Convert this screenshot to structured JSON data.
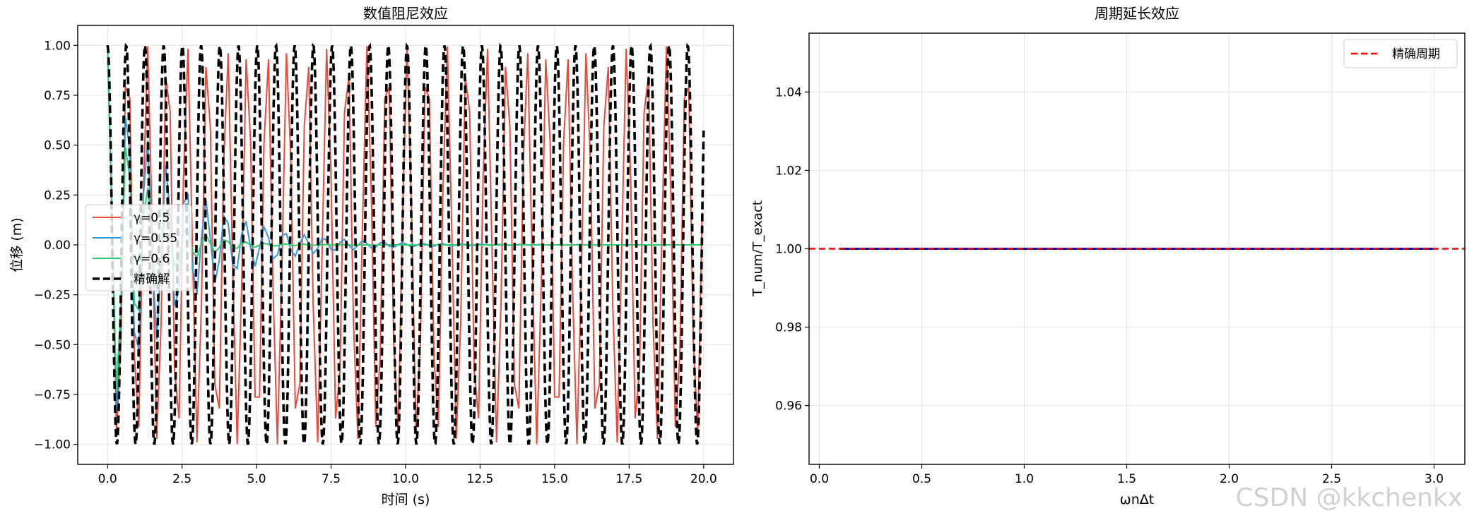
{
  "watermark": "CSDN @kkchenkx",
  "chart_data": [
    {
      "type": "line",
      "title": "数值阻尼效应",
      "xlabel": "时间 (s)",
      "ylabel": "位移 (m)",
      "xlim": [
        -1.0,
        21.0
      ],
      "ylim": [
        -1.1,
        1.1
      ],
      "xticks": [
        0.0,
        2.5,
        5.0,
        7.5,
        10.0,
        12.5,
        15.0,
        17.5,
        20.0
      ],
      "xtick_labels": [
        "0.0",
        "2.5",
        "5.0",
        "7.5",
        "10.0",
        "12.5",
        "15.0",
        "17.5",
        "20.0"
      ],
      "yticks": [
        -1.0,
        -0.75,
        -0.5,
        -0.25,
        0.0,
        0.25,
        0.5,
        0.75,
        1.0
      ],
      "ytick_labels": [
        "−1.00",
        "−0.75",
        "−0.50",
        "−0.25",
        "0.00",
        "0.25",
        "0.50",
        "0.75",
        "1.00"
      ],
      "grid": true,
      "legend_position": "center-left",
      "series": [
        {
          "name": "γ=0.5",
          "color": "#e74c3c",
          "style": "solid",
          "x_range": [
            0,
            20
          ],
          "amplitude": 1.0,
          "decay_rate": 0.0,
          "period": 0.67
        },
        {
          "name": "γ=0.55",
          "color": "#3498db",
          "style": "solid",
          "x_range": [
            0,
            20
          ],
          "amplitude": 1.0,
          "decay_rate": 0.45,
          "period": 0.66
        },
        {
          "name": "γ=0.6",
          "color": "#2ecc71",
          "style": "solid",
          "x_range": [
            0,
            20
          ],
          "amplitude": 1.0,
          "decay_rate": 0.9,
          "period": 0.66
        },
        {
          "name": "精确解",
          "color": "#000000",
          "style": "dashed",
          "x_range": [
            0,
            20
          ],
          "amplitude": 1.0,
          "decay_rate": 0.0,
          "period": 0.628
        }
      ]
    },
    {
      "type": "line",
      "title": "周期延长效应",
      "xlabel": "ωnΔt",
      "ylabel": "T_num/T_exact",
      "xlim": [
        -0.05,
        3.15
      ],
      "ylim": [
        0.945,
        1.055
      ],
      "xticks": [
        0.0,
        0.5,
        1.0,
        1.5,
        2.0,
        2.5,
        3.0
      ],
      "xtick_labels": [
        "0.0",
        "0.5",
        "1.0",
        "1.5",
        "2.0",
        "2.5",
        "3.0"
      ],
      "yticks": [
        0.96,
        0.98,
        1.0,
        1.02,
        1.04
      ],
      "ytick_labels": [
        "0.96",
        "0.98",
        "1.00",
        "1.02",
        "1.04"
      ],
      "grid": true,
      "legend_position": "top-right",
      "series": [
        {
          "name": "",
          "color": "#0000cc",
          "style": "solid",
          "x": [
            0.1,
            3.0
          ],
          "y": [
            1.0,
            1.0
          ]
        },
        {
          "name": "精确周期",
          "color": "#ff0000",
          "style": "dashed",
          "type": "hline",
          "y": 1.0
        }
      ]
    }
  ]
}
